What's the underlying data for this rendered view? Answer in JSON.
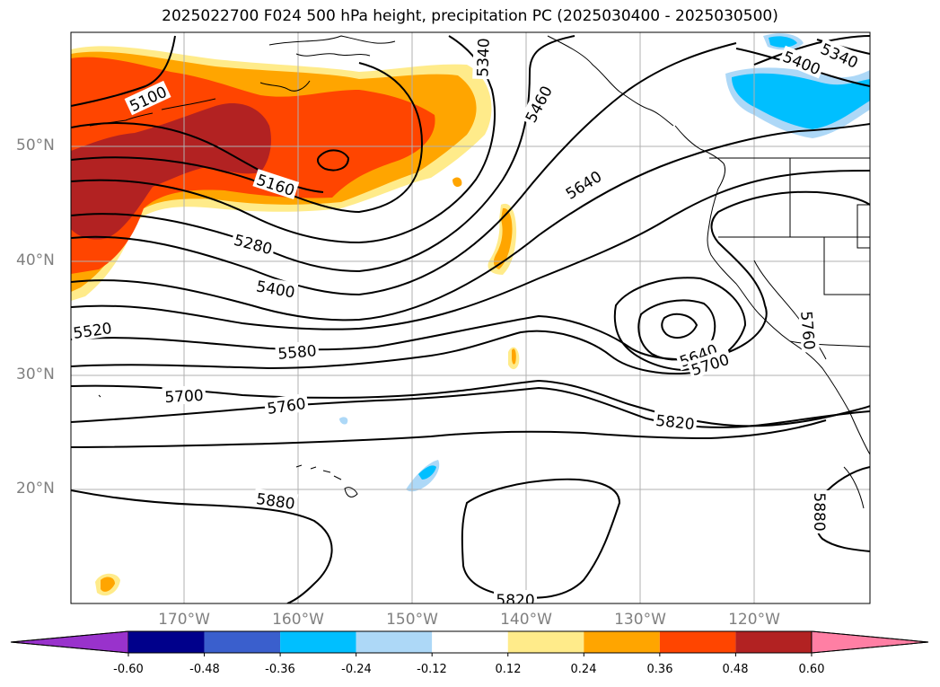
{
  "title": "2025022700 F024 500 hPa height, precipitation PC (2025030400 - 2025030500)",
  "lat_labels": [
    "50°N",
    "40°N",
    "30°N",
    "20°N"
  ],
  "lon_labels": [
    "170°W",
    "160°W",
    "150°W",
    "140°W",
    "130°W",
    "120°W"
  ],
  "contour_labels": [
    "5100",
    "5160",
    "5280",
    "5340",
    "5340",
    "5400",
    "5400",
    "5460",
    "5520",
    "5580",
    "5640",
    "5640",
    "5700",
    "5700",
    "5760",
    "5760",
    "5820",
    "5820",
    "5880",
    "5880"
  ],
  "colorbar": {
    "ticks": [
      "-0.60",
      "-0.48",
      "-0.36",
      "-0.24",
      "-0.12",
      "0.12",
      "0.24",
      "0.36",
      "0.48",
      "0.60"
    ],
    "colors": [
      "#9932cc",
      "#00008b",
      "#3a5fcd",
      "#00bfff",
      "#add8f7",
      "#ffffff",
      "#ffeb8a",
      "#ffa500",
      "#ff4500",
      "#b22222",
      "#ff7fa4"
    ]
  }
}
